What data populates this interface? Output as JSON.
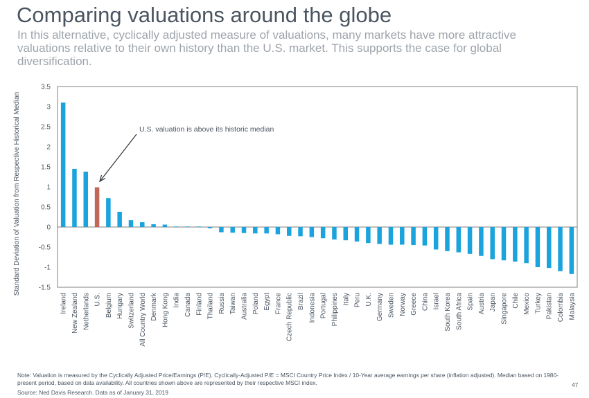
{
  "header": {
    "title": "Comparing valuations around the globe",
    "subtitle": "In this alternative, cyclically adjusted measure of valuations, many markets have more attractive valuations relative to their own history than the U.S. market. This supports the case for global diversification."
  },
  "footer": {
    "note": "Note: Valuation is measured by the Cyclically Adjusted Price/Earnings (P/E). Cyclically-Adjusted P/E = MSCI Country Price Index / 10-Year average earnings per share (inflation adjusted). Median based on 1980-present period, based on data availability. All countries shown above are represented by their respective MSCI index.",
    "source": "Source: Ned Davis Research. Data as of January 31, 2019",
    "page_number": "47"
  },
  "chart_data": {
    "type": "bar",
    "title": "",
    "xlabel": "",
    "ylabel": "Standard Deviation of Valuation from Respective Historical Median",
    "ylim": [
      -1.5,
      3.5
    ],
    "yticks": [
      "3.5",
      "3",
      "2.5",
      "2",
      "1.5",
      "1",
      "0.5",
      "0",
      "-0.5",
      "-1",
      "-1.5"
    ],
    "grid": false,
    "legend": "none",
    "colors": {
      "default": "#1aa3dc",
      "highlight": "#c0675a",
      "axis": "#7f7f7f",
      "text": "#4a5561"
    },
    "highlight_category": "U.S.",
    "annotation": {
      "text": "U.S. valuation is above its historic median",
      "target": "U.S."
    },
    "categories": [
      "Ireland",
      "New Zealand",
      "Netherlands",
      "U.S.",
      "Belgium",
      "Hungary",
      "Switzerland",
      "All Country World",
      "Denmark",
      "Hong Kong",
      "India",
      "Canada",
      "Finland",
      "Thailand",
      "Russia",
      "Taiwan",
      "Australia",
      "Poland",
      "Egypt",
      "France",
      "Czech Republic",
      "Brazil",
      "Indonesia",
      "Portugal",
      "Philippines",
      "Italy",
      "Peru",
      "U.K.",
      "Germany",
      "Sweden",
      "Norway",
      "Greece",
      "China",
      "Israel",
      "South Korea",
      "South Africa",
      "Spain",
      "Austria",
      "Japan",
      "Singapore",
      "Chile",
      "Mexico",
      "Turkey",
      "Pakistan",
      "Colombia",
      "Malaysia"
    ],
    "values": [
      3.1,
      1.45,
      1.38,
      0.99,
      0.72,
      0.38,
      0.17,
      0.12,
      0.07,
      0.06,
      0.01,
      0.0,
      0.0,
      -0.03,
      -0.13,
      -0.14,
      -0.15,
      -0.16,
      -0.16,
      -0.18,
      -0.22,
      -0.23,
      -0.25,
      -0.28,
      -0.31,
      -0.33,
      -0.36,
      -0.4,
      -0.42,
      -0.44,
      -0.44,
      -0.45,
      -0.46,
      -0.56,
      -0.6,
      -0.63,
      -0.67,
      -0.72,
      -0.8,
      -0.83,
      -0.86,
      -0.9,
      -1.0,
      -1.02,
      -1.1,
      -1.17
    ]
  }
}
